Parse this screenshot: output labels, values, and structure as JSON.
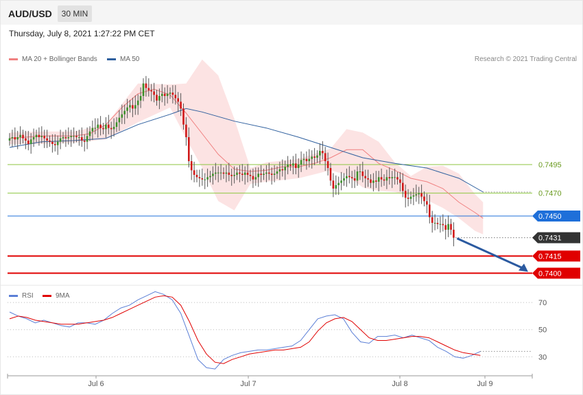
{
  "header": {
    "symbol": "AUD/USD",
    "timeframe": "30 MIN",
    "datetime": "Thursday, July 8, 2021 1:27:22 PM CET"
  },
  "legend": {
    "ma20_label": "MA 20 + Bollinger Bands",
    "ma50_label": "MA 50",
    "ma20_color": "#f08080",
    "ma50_color": "#2e5f9e",
    "credit": "Research © 2021 Trading Central"
  },
  "rsi_legend": {
    "rsi_label": "RSI",
    "ma9_label": "9MA",
    "rsi_color": "#5b7fd6",
    "ma9_color": "#e00000"
  },
  "chart_data": [
    {
      "type": "candlestick",
      "title": "",
      "ylim": [
        0.7393,
        0.7597
      ],
      "x_ticks": [
        "Jul 6",
        "Jul 7",
        "Jul 8",
        "Jul 9"
      ],
      "current_price": "0.7431",
      "levels": [
        {
          "label": "0.7495",
          "value": 0.7495,
          "kind": "resistance",
          "color": "#8cc63f"
        },
        {
          "label": "0.7470",
          "value": 0.747,
          "kind": "resistance",
          "color": "#8cc63f"
        },
        {
          "label": "0.7450",
          "value": 0.745,
          "kind": "pivot",
          "color": "#1e6fd9"
        },
        {
          "label": "0.7415",
          "value": 0.7415,
          "kind": "support",
          "color": "#e00000"
        },
        {
          "label": "0.7400",
          "value": 0.74,
          "kind": "support",
          "color": "#e00000"
        }
      ],
      "ma20_points": [
        [
          0,
          0.7518
        ],
        [
          6,
          0.7519
        ],
        [
          12,
          0.752
        ],
        [
          18,
          0.752
        ],
        [
          24,
          0.752
        ],
        [
          30,
          0.7522
        ],
        [
          36,
          0.753
        ],
        [
          42,
          0.7545
        ],
        [
          48,
          0.7557
        ],
        [
          54,
          0.7561
        ],
        [
          60,
          0.7556
        ],
        [
          66,
          0.754
        ],
        [
          72,
          0.7522
        ],
        [
          78,
          0.7504
        ],
        [
          84,
          0.7491
        ],
        [
          90,
          0.7489
        ],
        [
          96,
          0.749
        ],
        [
          102,
          0.7493
        ],
        [
          108,
          0.7493
        ],
        [
          114,
          0.7496
        ],
        [
          120,
          0.7501
        ],
        [
          126,
          0.7508
        ],
        [
          132,
          0.7508
        ],
        [
          138,
          0.7496
        ],
        [
          144,
          0.749
        ],
        [
          150,
          0.7483
        ],
        [
          156,
          0.748
        ],
        [
          162,
          0.7474
        ],
        [
          168,
          0.7462
        ],
        [
          174,
          0.7453
        ],
        [
          177,
          0.7448
        ]
      ],
      "ma50_points": [
        [
          0,
          0.751
        ],
        [
          12,
          0.7515
        ],
        [
          24,
          0.7516
        ],
        [
          36,
          0.7518
        ],
        [
          48,
          0.753
        ],
        [
          60,
          0.7539
        ],
        [
          66,
          0.7544
        ],
        [
          72,
          0.7541
        ],
        [
          84,
          0.7533
        ],
        [
          96,
          0.7527
        ],
        [
          108,
          0.7519
        ],
        [
          120,
          0.751
        ],
        [
          132,
          0.7501
        ],
        [
          144,
          0.7496
        ],
        [
          156,
          0.7492
        ],
        [
          168,
          0.7483
        ],
        [
          177,
          0.7471
        ]
      ],
      "bb_upper": [
        [
          0,
          0.7523
        ],
        [
          12,
          0.7524
        ],
        [
          24,
          0.7524
        ],
        [
          36,
          0.753
        ],
        [
          48,
          0.7566
        ],
        [
          60,
          0.7565
        ],
        [
          66,
          0.7566
        ],
        [
          72,
          0.7587
        ],
        [
          78,
          0.7573
        ],
        [
          84,
          0.7535
        ],
        [
          90,
          0.7492
        ],
        [
          96,
          0.7497
        ],
        [
          108,
          0.75
        ],
        [
          120,
          0.7509
        ],
        [
          126,
          0.7526
        ],
        [
          132,
          0.7523
        ],
        [
          138,
          0.7515
        ],
        [
          144,
          0.7497
        ],
        [
          150,
          0.7485
        ],
        [
          156,
          0.7493
        ],
        [
          162,
          0.7494
        ],
        [
          168,
          0.7487
        ],
        [
          174,
          0.7469
        ],
        [
          177,
          0.7462
        ]
      ],
      "bb_lower": [
        [
          0,
          0.7513
        ],
        [
          12,
          0.7513
        ],
        [
          24,
          0.7514
        ],
        [
          36,
          0.7517
        ],
        [
          48,
          0.7532
        ],
        [
          60,
          0.7545
        ],
        [
          66,
          0.7518
        ],
        [
          72,
          0.7492
        ],
        [
          78,
          0.7463
        ],
        [
          84,
          0.7455
        ],
        [
          90,
          0.7478
        ],
        [
          96,
          0.748
        ],
        [
          108,
          0.7483
        ],
        [
          120,
          0.749
        ],
        [
          126,
          0.7486
        ],
        [
          132,
          0.7475
        ],
        [
          138,
          0.7472
        ],
        [
          144,
          0.7471
        ],
        [
          150,
          0.7468
        ],
        [
          156,
          0.7464
        ],
        [
          162,
          0.7457
        ],
        [
          168,
          0.7448
        ],
        [
          174,
          0.7437
        ],
        [
          177,
          0.7434
        ]
      ],
      "closes": [
        0.7518,
        0.7519,
        0.7517,
        0.7519,
        0.7521,
        0.7518,
        0.7516,
        0.7513,
        0.7517,
        0.7519,
        0.7521,
        0.7519,
        0.752,
        0.7518,
        0.7516,
        0.7515,
        0.7513,
        0.7512,
        0.7515,
        0.7518,
        0.7519,
        0.7518,
        0.7519,
        0.752,
        0.752,
        0.7519,
        0.7519,
        0.7516,
        0.7515,
        0.752,
        0.7524,
        0.7527,
        0.7527,
        0.753,
        0.7527,
        0.7526,
        0.753,
        0.7527,
        0.7526,
        0.7528,
        0.7532,
        0.7536,
        0.7539,
        0.7542,
        0.7545,
        0.7547,
        0.7544,
        0.7547,
        0.7551,
        0.7555,
        0.7566,
        0.7562,
        0.756,
        0.7559,
        0.7556,
        0.7551,
        0.7555,
        0.7557,
        0.7555,
        0.7557,
        0.7558,
        0.7556,
        0.7553,
        0.755,
        0.7544,
        0.753,
        0.7519,
        0.7498,
        0.749,
        0.7486,
        0.7484,
        0.7483,
        0.7482,
        0.7482,
        0.7484,
        0.7485,
        0.7487,
        0.7488,
        0.7488,
        0.7488,
        0.7487,
        0.7488,
        0.7486,
        0.7485,
        0.7486,
        0.7488,
        0.7487,
        0.7486,
        0.7488,
        0.7486,
        0.7485,
        0.7482,
        0.7484,
        0.7487,
        0.7486,
        0.7487,
        0.7488,
        0.7487,
        0.7486,
        0.7487,
        0.7489,
        0.7491,
        0.749,
        0.7493,
        0.7495,
        0.7494,
        0.7496,
        0.7492,
        0.7495,
        0.7499,
        0.75,
        0.7498,
        0.75,
        0.7502,
        0.7501,
        0.7503,
        0.7507,
        0.7505,
        0.7498,
        0.7492,
        0.7481,
        0.7474,
        0.7477,
        0.7479,
        0.7481,
        0.7483,
        0.7485,
        0.7484,
        0.7483,
        0.7481,
        0.7489,
        0.7489,
        0.7485,
        0.7483,
        0.7482,
        0.7479,
        0.7481,
        0.748,
        0.7484,
        0.7482,
        0.7481,
        0.7484,
        0.7483,
        0.7484,
        0.7484,
        0.7482,
        0.7479,
        0.7472,
        0.7466,
        0.7465,
        0.7467,
        0.7468,
        0.7469,
        0.747,
        0.7467,
        0.7463,
        0.746,
        0.7449,
        0.7444,
        0.7444,
        0.7443,
        0.7443,
        0.7442,
        0.7438,
        0.7443,
        0.7438,
        0.7431
      ]
    },
    {
      "type": "line",
      "title": "",
      "ylim": [
        17.5,
        80.7
      ],
      "y_ticks": [
        "70",
        "50",
        "30"
      ],
      "series": [
        {
          "name": "RSI",
          "values_every_4_bars": [
            63,
            60,
            58,
            55,
            57,
            55,
            53,
            52,
            55,
            55,
            54,
            57,
            62,
            66,
            68,
            72,
            75,
            78,
            76,
            72,
            62,
            45,
            28,
            22,
            21,
            28,
            31,
            33,
            34,
            35,
            35,
            36,
            37,
            38,
            42,
            50,
            58,
            60,
            61,
            58,
            48,
            41,
            40,
            45,
            45,
            46,
            44,
            46,
            44,
            42,
            37,
            34,
            30,
            29,
            31,
            34
          ]
        },
        {
          "name": "9MA",
          "values_every_4_bars": [
            58,
            60,
            59,
            57,
            56,
            55,
            54,
            54,
            54,
            55,
            56,
            57,
            59,
            62,
            65,
            68,
            71,
            74,
            75,
            74,
            68,
            56,
            42,
            32,
            26,
            25,
            28,
            30,
            32,
            33,
            34,
            35,
            35,
            36,
            37,
            41,
            49,
            55,
            58,
            59,
            56,
            50,
            44,
            42,
            42,
            43,
            44,
            45,
            45,
            44,
            41,
            38,
            35,
            33,
            32,
            31
          ]
        }
      ]
    }
  ]
}
